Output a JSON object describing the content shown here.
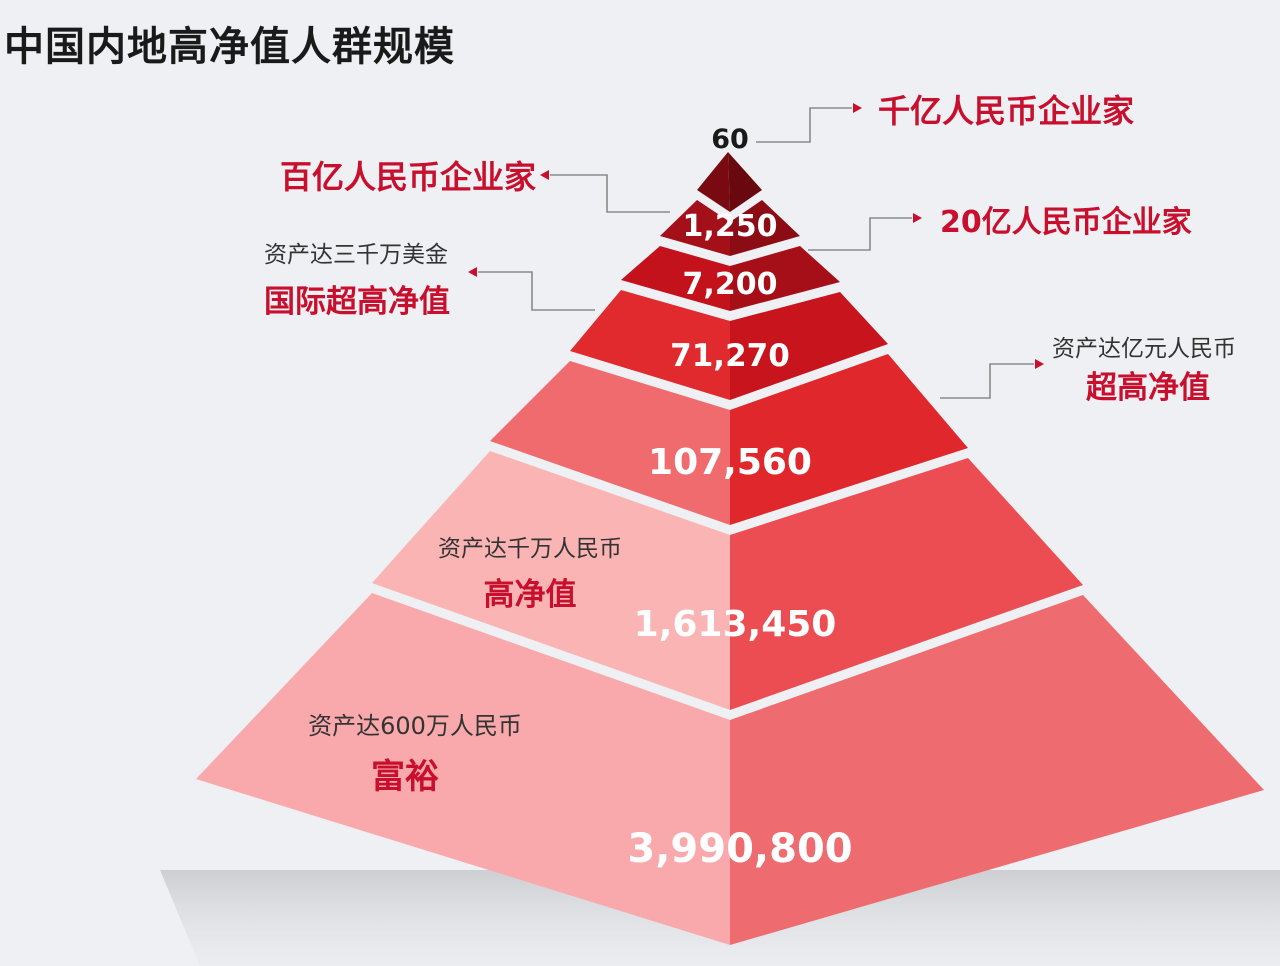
{
  "chart_data": {
    "type": "pyramid",
    "title": "中国内地高净值人群规模",
    "levels": [
      {
        "value": 60,
        "value_label": "60",
        "name": "千亿人民币企业家",
        "subtitle": ""
      },
      {
        "value": 1250,
        "value_label": "1,250",
        "name": "百亿人民币企业家",
        "subtitle": ""
      },
      {
        "value": 7200,
        "value_label": "7,200",
        "name": "20亿人民币企业家",
        "subtitle": ""
      },
      {
        "value": 71270,
        "value_label": "71,270",
        "name": "国际超高净值",
        "subtitle": "资产达三千万美金"
      },
      {
        "value": 107560,
        "value_label": "107,560",
        "name": "超高净值",
        "subtitle": "资产达亿元人民币"
      },
      {
        "value": 1613450,
        "value_label": "1,613,450",
        "name": "高净值",
        "subtitle": "资产达千万人民币"
      },
      {
        "value": 3990800,
        "value_label": "3,990,800",
        "name": "富裕",
        "subtitle": "资产达600万人民币"
      }
    ],
    "colors": {
      "label_red": "#c8102e",
      "dark_red": "#8b0a16",
      "mid_red": "#d4161d",
      "light_red": "#f08a8a",
      "palest_red": "#fbc3c3",
      "arrow_gray": "#8a8a8a"
    }
  }
}
